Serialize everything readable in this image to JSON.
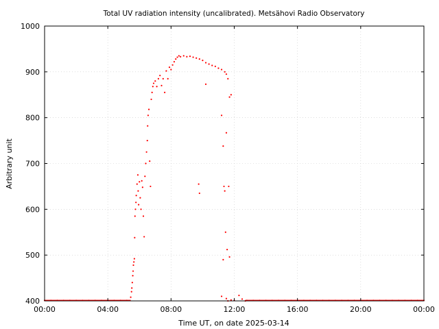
{
  "chart_data": {
    "type": "scatter",
    "title": "Total UV radiation intensity (uncalibrated). Metsähovi Radio Observatory",
    "xlabel": "Time UT, on date 2025-03-14",
    "ylabel": "Arbitrary unit",
    "xlim": [
      0,
      24
    ],
    "ylim": [
      400,
      1000
    ],
    "x_ticks": [
      0,
      4,
      8,
      12,
      16,
      20,
      24
    ],
    "x_tick_labels": [
      "00:00",
      "04:00",
      "08:00",
      "12:00",
      "16:00",
      "20:00",
      "00:00"
    ],
    "y_ticks": [
      400,
      500,
      600,
      700,
      800,
      900,
      1000
    ],
    "y_tick_labels": [
      "400",
      "500",
      "600",
      "700",
      "800",
      "900",
      "1000"
    ],
    "grid": true,
    "point_color": "#ff0000",
    "series": [
      {
        "points": [
          [
            0.0,
            401
          ],
          [
            0.4,
            401
          ],
          [
            0.8,
            401
          ],
          [
            1.2,
            401
          ],
          [
            1.6,
            401
          ],
          [
            2.0,
            401
          ],
          [
            2.4,
            401
          ],
          [
            2.8,
            401
          ],
          [
            3.2,
            401
          ],
          [
            3.6,
            401
          ],
          [
            4.0,
            401
          ],
          [
            4.4,
            401
          ],
          [
            4.8,
            401
          ],
          [
            5.2,
            401
          ],
          [
            5.45,
            408
          ],
          [
            5.5,
            420
          ],
          [
            5.52,
            428
          ],
          [
            5.55,
            440
          ],
          [
            5.58,
            455
          ],
          [
            5.6,
            465
          ],
          [
            5.62,
            478
          ],
          [
            5.65,
            485
          ],
          [
            5.68,
            492
          ],
          [
            5.7,
            538
          ],
          [
            5.72,
            585
          ],
          [
            5.75,
            600
          ],
          [
            5.78,
            615
          ],
          [
            5.8,
            630
          ],
          [
            5.85,
            655
          ],
          [
            5.9,
            675
          ],
          [
            5.92,
            640
          ],
          [
            5.95,
            610
          ],
          [
            6.0,
            660
          ],
          [
            6.05,
            625
          ],
          [
            6.1,
            600
          ],
          [
            6.15,
            662
          ],
          [
            6.2,
            648
          ],
          [
            6.25,
            585
          ],
          [
            6.3,
            540
          ],
          [
            6.35,
            672
          ],
          [
            6.4,
            700
          ],
          [
            6.45,
            725
          ],
          [
            6.5,
            750
          ],
          [
            6.52,
            782
          ],
          [
            6.55,
            805
          ],
          [
            6.6,
            818
          ],
          [
            6.65,
            705
          ],
          [
            6.7,
            650
          ],
          [
            6.75,
            840
          ],
          [
            6.8,
            855
          ],
          [
            6.85,
            868
          ],
          [
            6.9,
            875
          ],
          [
            7.0,
            880
          ],
          [
            7.1,
            868
          ],
          [
            7.2,
            885
          ],
          [
            7.3,
            892
          ],
          [
            7.4,
            870
          ],
          [
            7.5,
            885
          ],
          [
            7.6,
            855
          ],
          [
            7.7,
            902
          ],
          [
            7.8,
            885
          ],
          [
            7.9,
            910
          ],
          [
            8.0,
            905
          ],
          [
            8.1,
            915
          ],
          [
            8.2,
            922
          ],
          [
            8.3,
            928
          ],
          [
            8.4,
            932
          ],
          [
            8.5,
            935
          ],
          [
            8.6,
            933
          ],
          [
            8.8,
            935
          ],
          [
            9.0,
            933
          ],
          [
            9.2,
            934
          ],
          [
            9.4,
            932
          ],
          [
            9.6,
            930
          ],
          [
            9.8,
            928
          ],
          [
            10.0,
            925
          ],
          [
            10.2,
            920
          ],
          [
            10.4,
            917
          ],
          [
            10.6,
            914
          ],
          [
            10.8,
            912
          ],
          [
            11.0,
            908
          ],
          [
            11.2,
            905
          ],
          [
            11.4,
            900
          ],
          [
            11.5,
            895
          ],
          [
            11.6,
            885
          ],
          [
            9.75,
            655
          ],
          [
            9.8,
            635
          ],
          [
            10.2,
            873
          ],
          [
            11.7,
            845
          ],
          [
            11.8,
            850
          ],
          [
            11.2,
            805
          ],
          [
            11.3,
            738
          ],
          [
            11.35,
            650
          ],
          [
            11.4,
            640
          ],
          [
            11.5,
            767
          ],
          [
            11.45,
            550
          ],
          [
            11.55,
            512
          ],
          [
            11.65,
            650
          ],
          [
            11.7,
            496
          ],
          [
            11.3,
            490
          ],
          [
            11.2,
            410
          ],
          [
            11.5,
            405
          ],
          [
            11.6,
            400
          ],
          [
            11.8,
            402
          ],
          [
            12.0,
            401
          ],
          [
            12.3,
            412
          ],
          [
            12.5,
            404
          ],
          [
            12.7,
            400
          ],
          [
            12.8,
            401
          ],
          [
            13.2,
            401
          ],
          [
            13.6,
            401
          ],
          [
            14.0,
            401
          ],
          [
            14.4,
            401
          ],
          [
            14.8,
            401
          ],
          [
            15.2,
            401
          ],
          [
            15.6,
            401
          ],
          [
            16.0,
            401
          ],
          [
            16.4,
            401
          ],
          [
            16.8,
            401
          ],
          [
            17.2,
            401
          ],
          [
            17.6,
            401
          ],
          [
            18.0,
            401
          ],
          [
            18.4,
            401
          ],
          [
            18.8,
            401
          ],
          [
            19.2,
            401
          ],
          [
            19.6,
            401
          ],
          [
            20.0,
            401
          ],
          [
            20.4,
            401
          ],
          [
            20.8,
            401
          ],
          [
            21.2,
            401
          ],
          [
            21.6,
            401
          ],
          [
            22.0,
            401
          ],
          [
            22.4,
            401
          ],
          [
            22.8,
            401
          ],
          [
            23.2,
            401
          ],
          [
            23.6,
            401
          ],
          [
            24.0,
            401
          ]
        ]
      }
    ]
  }
}
